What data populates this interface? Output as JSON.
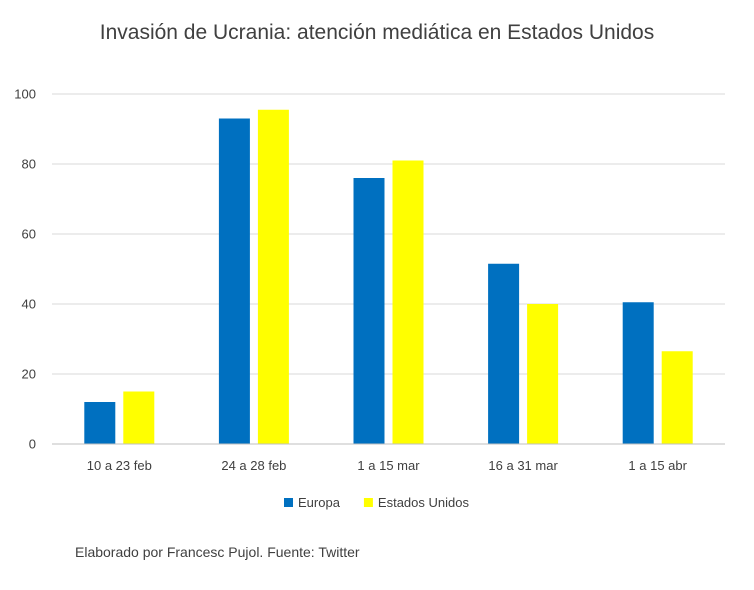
{
  "chart_data": {
    "type": "bar",
    "title": "Invasión de Ucrania: atención mediática en Estados Unidos",
    "xlabel": "",
    "ylabel": "",
    "categories": [
      "10 a 23 feb",
      "24 a 28 feb",
      "1 a 15 mar",
      "16 a 31 mar",
      "1 a 15 abr"
    ],
    "series": [
      {
        "name": "Europa",
        "color": "#0070C0",
        "values": [
          12,
          93,
          76,
          51.5,
          40.5
        ]
      },
      {
        "name": "Estados Unidos",
        "color": "#FFFF00",
        "values": [
          15,
          95.5,
          81,
          40,
          26.5
        ]
      }
    ],
    "ylim": [
      0,
      100
    ],
    "yticks": [
      0,
      20,
      40,
      60,
      80,
      100
    ],
    "grid": true,
    "legend": "bottom"
  },
  "footer": {
    "source": "Elaborado por Francesc Pujol. Fuente: Twitter"
  }
}
